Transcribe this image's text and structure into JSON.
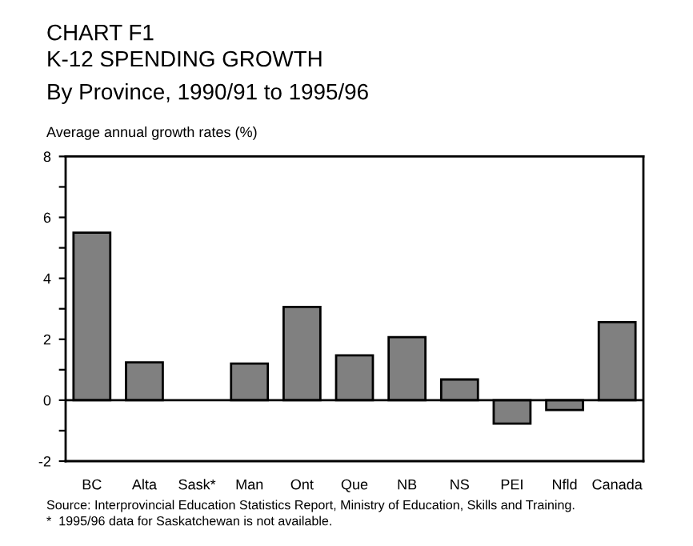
{
  "chart_data": {
    "type": "bar",
    "title": "CHART F1\nK-12 SPENDING GROWTH",
    "subtitle": "By Province, 1990/91 to 1995/96",
    "ylabel": "Average annual growth rates (%)",
    "categories": [
      "BC",
      "Alta",
      "Sask*",
      "Man",
      "Ont",
      "Que",
      "NB",
      "NS",
      "PEI",
      "Nfld",
      "Canada"
    ],
    "values": [
      5.5,
      1.24,
      null,
      1.2,
      3.06,
      1.47,
      2.07,
      0.68,
      -0.77,
      -0.32,
      2.56
    ],
    "color": "#808080",
    "ylim": [
      -2,
      8
    ],
    "yticks": [
      -2,
      {
        "value": -1,
        "label": null
      },
      0,
      {
        "value": 1,
        "label": null
      },
      2,
      {
        "value": 3,
        "label": null
      },
      4,
      {
        "value": 5,
        "label": null
      },
      6,
      {
        "value": 7,
        "label": null
      },
      8
    ],
    "ref_lines": [
      {
        "axis": "y",
        "value": 0,
        "color": "#000000"
      }
    ],
    "annotations": [
      "Source: Interprovincial Education Statistics Report, Ministry of Education, Skills and Training.",
      "*  1995/96 data for Saskatchewan is not available."
    ]
  }
}
